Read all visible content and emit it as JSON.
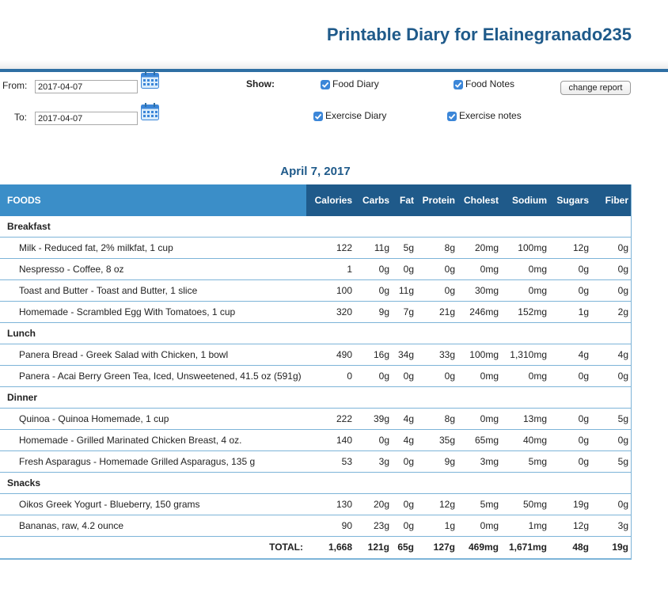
{
  "page_title": "Printable Diary for Elainegranado235",
  "filters": {
    "from_label": "From:",
    "from_value": "2017-04-07",
    "to_label": "To:",
    "to_value": "2017-04-07",
    "show_label": "Show:",
    "checkboxes": {
      "food_diary": "Food Diary",
      "food_notes": "Food Notes",
      "exercise_diary": "Exercise Diary",
      "exercise_notes": "Exercise notes"
    },
    "change_report": "change report"
  },
  "date_heading": "April 7, 2017",
  "columns": [
    "FOODS",
    "Calories",
    "Carbs",
    "Fat",
    "Protein",
    "Cholest",
    "Sodium",
    "Sugars",
    "Fiber"
  ],
  "rows": [
    {
      "meal": "Breakfast"
    },
    {
      "name": "Milk - Reduced fat, 2% milkfat, 1 cup",
      "v": [
        "122",
        "11g",
        "5g",
        "8g",
        "20mg",
        "100mg",
        "12g",
        "0g"
      ]
    },
    {
      "name": "Nespresso - Coffee, 8 oz",
      "v": [
        "1",
        "0g",
        "0g",
        "0g",
        "0mg",
        "0mg",
        "0g",
        "0g"
      ]
    },
    {
      "name": "Toast and Butter - Toast and Butter, 1 slice",
      "v": [
        "100",
        "0g",
        "11g",
        "0g",
        "30mg",
        "0mg",
        "0g",
        "0g"
      ]
    },
    {
      "name": "Homemade - Scrambled Egg With Tomatoes, 1 cup",
      "v": [
        "320",
        "9g",
        "7g",
        "21g",
        "246mg",
        "152mg",
        "1g",
        "2g"
      ]
    },
    {
      "meal": "Lunch"
    },
    {
      "name": "Panera Bread - Greek Salad with Chicken, 1 bowl",
      "v": [
        "490",
        "16g",
        "34g",
        "33g",
        "100mg",
        "1,310mg",
        "4g",
        "4g"
      ]
    },
    {
      "name": "Panera - Acai Berry Green Tea, Iced, Unsweetened, 41.5 oz (591g)",
      "v": [
        "0",
        "0g",
        "0g",
        "0g",
        "0mg",
        "0mg",
        "0g",
        "0g"
      ]
    },
    {
      "meal": "Dinner"
    },
    {
      "name": "Quinoa - Quinoa Homemade, 1 cup",
      "v": [
        "222",
        "39g",
        "4g",
        "8g",
        "0mg",
        "13mg",
        "0g",
        "5g"
      ]
    },
    {
      "name": "Homemade - Grilled Marinated Chicken Breast, 4 oz.",
      "v": [
        "140",
        "0g",
        "4g",
        "35g",
        "65mg",
        "40mg",
        "0g",
        "0g"
      ]
    },
    {
      "name": "Fresh Asparagus - Homemade Grilled Asparagus, 135 g",
      "v": [
        "53",
        "3g",
        "0g",
        "9g",
        "3mg",
        "5mg",
        "0g",
        "5g"
      ]
    },
    {
      "meal": "Snacks"
    },
    {
      "name": "Oikos Greek Yogurt - Blueberry, 150 grams",
      "v": [
        "130",
        "20g",
        "0g",
        "12g",
        "5mg",
        "50mg",
        "19g",
        "0g"
      ]
    },
    {
      "name": "Bananas, raw, 4.2 ounce",
      "v": [
        "90",
        "23g",
        "0g",
        "1g",
        "0mg",
        "1mg",
        "12g",
        "3g"
      ]
    }
  ],
  "total": {
    "label": "TOTAL:",
    "v": [
      "1,668",
      "121g",
      "65g",
      "127g",
      "469mg",
      "1,671mg",
      "48g",
      "19g"
    ]
  },
  "colors": {
    "heading": "#1f5a8a",
    "header_dark": "#1f5a8a",
    "header_light": "#3b8ec8",
    "checkbox": "#3b86d8"
  }
}
